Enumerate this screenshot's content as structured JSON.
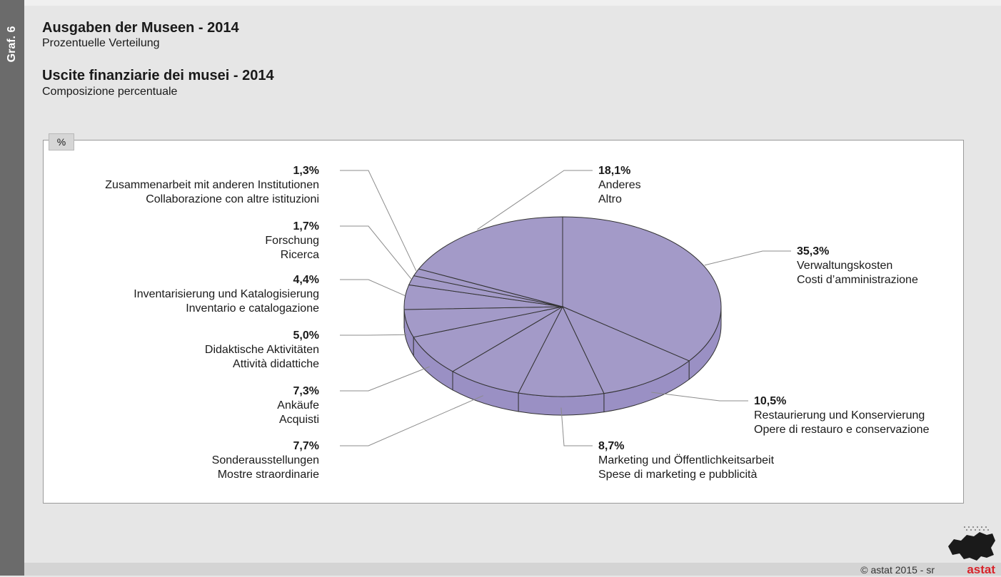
{
  "sidebar_label": "Graf. 6",
  "title_de": "Ausgaben der Museen - 2014",
  "subtitle_de": "Prozentuelle Verteilung",
  "title_it": "Uscite finanziarie dei musei - 2014",
  "subtitle_it": "Composizione percentuale",
  "unit": "%",
  "footer": {
    "copyright": "© astat 2015 - sr",
    "logo": "astat"
  },
  "colors": {
    "slice_top": "#a39ac8",
    "slice_side": "#9a90c4",
    "outline": "#333333",
    "leader": "#8c8c8c"
  },
  "chart_data": {
    "type": "pie",
    "title": "Ausgaben der Museen - 2014",
    "subtitle": "Prozentuelle Verteilung",
    "unit": "%",
    "slices": [
      {
        "value": 35.3,
        "label": "35,3%",
        "name_de": "Verwaltungskosten",
        "name_it": "Costi d’amministrazione"
      },
      {
        "value": 10.5,
        "label": "10,5%",
        "name_de": "Restaurierung und Konservierung",
        "name_it": "Opere di restauro e conservazione"
      },
      {
        "value": 8.7,
        "label": "8,7%",
        "name_de": "Marketing und Öffentlichkeitsarbeit",
        "name_it": "Spese di marketing e pubblicità"
      },
      {
        "value": 7.7,
        "label": "7,7%",
        "name_de": "Sonderausstellungen",
        "name_it": "Mostre straordinarie"
      },
      {
        "value": 7.3,
        "label": "7,3%",
        "name_de": "Ankäufe",
        "name_it": "Acquisti"
      },
      {
        "value": 5.0,
        "label": "5,0%",
        "name_de": "Didaktische Aktivitäten",
        "name_it": "Attività didattiche"
      },
      {
        "value": 4.4,
        "label": "4,4%",
        "name_de": "Inventarisierung und Katalogisierung",
        "name_it": "Inventario e catalogazione"
      },
      {
        "value": 1.7,
        "label": "1,7%",
        "name_de": "Forschung",
        "name_it": "Ricerca"
      },
      {
        "value": 1.3,
        "label": "1,3%",
        "name_de": "Zusammenarbeit mit anderen Institutionen",
        "name_it": "Collaborazione con altre istituzioni"
      },
      {
        "value": 18.1,
        "label": "18,1%",
        "name_de": "Anderes",
        "name_it": "Altro"
      }
    ]
  }
}
